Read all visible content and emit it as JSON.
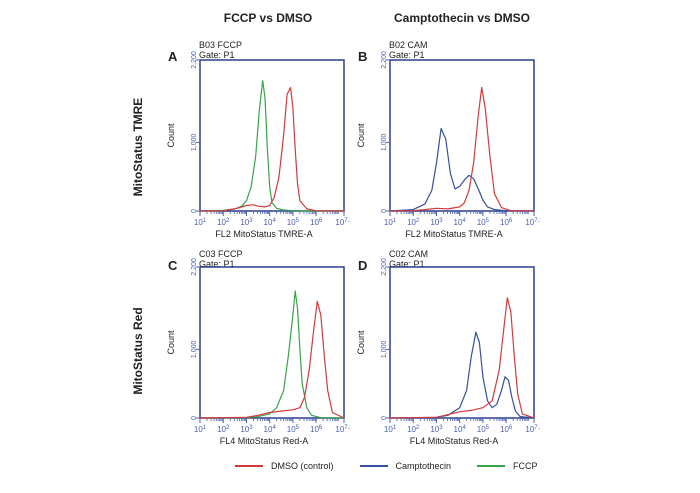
{
  "column_titles": [
    "FCCP vs DMSO",
    "Camptothecin vs DMSO"
  ],
  "row_titles": [
    "MitoStatus TMRE",
    "MitoStatus Red"
  ],
  "legend": [
    {
      "label": "DMSO (control)",
      "color": "#d23a3a"
    },
    {
      "label": "Camptothecin",
      "color": "#34509c"
    },
    {
      "label": "FCCP",
      "color": "#3aa34a"
    }
  ],
  "chart_data": [
    {
      "type": "line",
      "panel": "A",
      "sample": "B03 FCCP",
      "gate": "Gate: P1",
      "xlabel": "FL2 MitoStatus TMRE-A",
      "ylabel": "Count",
      "xscale": "log10",
      "xlim": [
        1,
        7.2
      ],
      "ylim": [
        0,
        2200
      ],
      "yticks": [
        "0",
        "1,000",
        "2,200"
      ],
      "xticks": [
        {
          "value": 1,
          "base": "10",
          "exp": "1"
        },
        {
          "value": 2,
          "base": "10",
          "exp": "2"
        },
        {
          "value": 3,
          "base": "10",
          "exp": "3"
        },
        {
          "value": 4,
          "base": "10",
          "exp": "4"
        },
        {
          "value": 5,
          "base": "10",
          "exp": "5"
        },
        {
          "value": 6,
          "base": "10",
          "exp": "6"
        },
        {
          "value": 7.2,
          "base": "10",
          "exp": "7.2"
        }
      ],
      "series": [
        {
          "name": "FCCP",
          "color": "#3aa34a",
          "x": [
            1,
            2.0,
            2.5,
            2.8,
            3.0,
            3.2,
            3.4,
            3.55,
            3.7,
            3.8,
            3.9,
            4.0,
            4.1,
            4.3,
            4.6,
            5.0,
            6.0,
            7.2
          ],
          "y": [
            0,
            10,
            30,
            70,
            150,
            350,
            800,
            1450,
            1900,
            1650,
            900,
            350,
            120,
            40,
            15,
            5,
            0,
            0
          ]
        },
        {
          "name": "DMSO (control)",
          "color": "#d23a3a",
          "x": [
            1,
            2.0,
            2.5,
            3.0,
            3.3,
            3.5,
            3.8,
            4.0,
            4.2,
            4.4,
            4.6,
            4.75,
            4.9,
            5.0,
            5.1,
            5.2,
            5.3,
            5.6,
            6.0,
            7.2
          ],
          "y": [
            0,
            5,
            30,
            80,
            90,
            70,
            60,
            80,
            200,
            500,
            1100,
            1700,
            1800,
            1500,
            900,
            400,
            150,
            30,
            5,
            0
          ]
        }
      ]
    },
    {
      "type": "line",
      "panel": "B",
      "sample": "B02 CAM",
      "gate": "Gate: P1",
      "xlabel": "FL2 MitoStatus TMRE-A",
      "ylabel": "Count",
      "xscale": "log10",
      "xlim": [
        1,
        7.2
      ],
      "ylim": [
        0,
        2200
      ],
      "yticks": [
        "0",
        "1,000",
        "2,200"
      ],
      "xticks": [
        {
          "value": 1,
          "base": "10",
          "exp": "1"
        },
        {
          "value": 2,
          "base": "10",
          "exp": "2"
        },
        {
          "value": 3,
          "base": "10",
          "exp": "3"
        },
        {
          "value": 4,
          "base": "10",
          "exp": "4"
        },
        {
          "value": 5,
          "base": "10",
          "exp": "5"
        },
        {
          "value": 6,
          "base": "10",
          "exp": "6"
        },
        {
          "value": 7.2,
          "base": "10",
          "exp": "7.2"
        }
      ],
      "series": [
        {
          "name": "Camptothecin",
          "color": "#34509c",
          "x": [
            1,
            2.0,
            2.5,
            2.8,
            3.0,
            3.2,
            3.4,
            3.6,
            3.8,
            4.0,
            4.2,
            4.4,
            4.6,
            4.8,
            5.0,
            5.2,
            5.5,
            6.0,
            7.2
          ],
          "y": [
            0,
            20,
            100,
            300,
            700,
            1200,
            1050,
            550,
            320,
            360,
            450,
            520,
            470,
            320,
            160,
            60,
            20,
            5,
            0
          ]
        },
        {
          "name": "DMSO (control)",
          "color": "#d23a3a",
          "x": [
            1,
            2.0,
            2.5,
            3.0,
            3.5,
            4.0,
            4.2,
            4.4,
            4.6,
            4.8,
            4.95,
            5.1,
            5.3,
            5.5,
            5.8,
            6.2,
            7.2
          ],
          "y": [
            0,
            5,
            20,
            40,
            30,
            60,
            120,
            300,
            700,
            1400,
            1800,
            1500,
            800,
            250,
            50,
            5,
            0
          ]
        }
      ]
    },
    {
      "type": "line",
      "panel": "C",
      "sample": "C03 FCCP",
      "gate": "Gate: P1",
      "xlabel": "FL4 MitoStatus Red-A",
      "ylabel": "Count",
      "xscale": "log10",
      "xlim": [
        1,
        7.2
      ],
      "ylim": [
        0,
        2200
      ],
      "yticks": [
        "0",
        "1,000",
        "2,200"
      ],
      "xticks": [
        {
          "value": 1,
          "base": "10",
          "exp": "1"
        },
        {
          "value": 2,
          "base": "10",
          "exp": "2"
        },
        {
          "value": 3,
          "base": "10",
          "exp": "3"
        },
        {
          "value": 4,
          "base": "10",
          "exp": "4"
        },
        {
          "value": 5,
          "base": "10",
          "exp": "5"
        },
        {
          "value": 6,
          "base": "10",
          "exp": "6"
        },
        {
          "value": 7.2,
          "base": "10",
          "exp": "7.2"
        }
      ],
      "series": [
        {
          "name": "FCCP",
          "color": "#3aa34a",
          "x": [
            1,
            3.0,
            3.5,
            4.0,
            4.3,
            4.6,
            4.8,
            5.0,
            5.1,
            5.2,
            5.3,
            5.4,
            5.6,
            5.8,
            6.2,
            7.2
          ],
          "y": [
            0,
            5,
            20,
            60,
            150,
            400,
            900,
            1500,
            1850,
            1600,
            1000,
            500,
            150,
            40,
            5,
            0
          ]
        },
        {
          "name": "DMSO (control)",
          "color": "#d23a3a",
          "x": [
            1,
            3.0,
            3.5,
            4.0,
            4.5,
            5.0,
            5.3,
            5.5,
            5.7,
            5.9,
            6.05,
            6.2,
            6.35,
            6.5,
            6.7,
            7.2
          ],
          "y": [
            0,
            10,
            40,
            80,
            100,
            120,
            150,
            300,
            700,
            1300,
            1700,
            1500,
            900,
            400,
            80,
            0
          ]
        }
      ]
    },
    {
      "type": "line",
      "panel": "D",
      "sample": "C02 CAM",
      "gate": "Gate: P1",
      "xlabel": "FL4 MitoStatus Red-A",
      "ylabel": "Count",
      "xscale": "log10",
      "xlim": [
        1,
        7.2
      ],
      "ylim": [
        0,
        2200
      ],
      "yticks": [
        "0",
        "1,000",
        "2,200"
      ],
      "xticks": [
        {
          "value": 1,
          "base": "10",
          "exp": "1"
        },
        {
          "value": 2,
          "base": "10",
          "exp": "2"
        },
        {
          "value": 3,
          "base": "10",
          "exp": "3"
        },
        {
          "value": 4,
          "base": "10",
          "exp": "4"
        },
        {
          "value": 5,
          "base": "10",
          "exp": "5"
        },
        {
          "value": 6,
          "base": "10",
          "exp": "6"
        },
        {
          "value": 7.2,
          "base": "10",
          "exp": "7.2"
        }
      ],
      "series": [
        {
          "name": "Camptothecin",
          "color": "#34509c",
          "x": [
            1,
            3.0,
            3.5,
            4.0,
            4.3,
            4.5,
            4.7,
            4.85,
            5.0,
            5.2,
            5.4,
            5.6,
            5.8,
            5.95,
            6.1,
            6.25,
            6.4,
            6.6,
            7.2
          ],
          "y": [
            0,
            10,
            40,
            150,
            400,
            900,
            1250,
            1100,
            600,
            250,
            150,
            200,
            400,
            600,
            550,
            300,
            100,
            20,
            0
          ]
        },
        {
          "name": "DMSO (control)",
          "color": "#d23a3a",
          "x": [
            1,
            3.0,
            3.5,
            4.0,
            4.5,
            5.0,
            5.4,
            5.7,
            5.9,
            6.05,
            6.2,
            6.35,
            6.5,
            6.7,
            7.2
          ],
          "y": [
            0,
            10,
            50,
            90,
            110,
            150,
            250,
            700,
            1300,
            1750,
            1550,
            900,
            350,
            60,
            0
          ]
        }
      ]
    }
  ]
}
